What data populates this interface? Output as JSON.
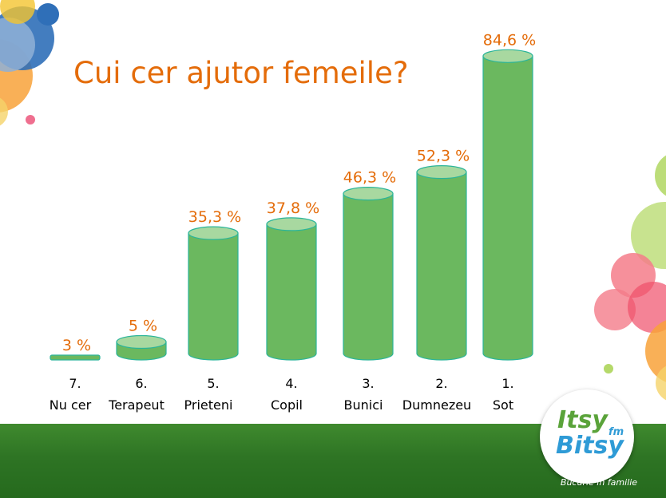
{
  "chart_data": {
    "type": "bar",
    "title": "Cui cer ajutor femeile?",
    "unit": "%",
    "categories": [
      {
        "rank": "7.",
        "label": "Nu cer"
      },
      {
        "rank": "6.",
        "label": "Terapeut"
      },
      {
        "rank": "5.",
        "label": "Prieteni"
      },
      {
        "rank": "4.",
        "label": "Copil"
      },
      {
        "rank": "3.",
        "label": "Bunici"
      },
      {
        "rank": "2.",
        "label": "Dumnezeu"
      },
      {
        "rank": "1.",
        "label": "Sot"
      }
    ],
    "values": [
      3,
      5,
      35.3,
      37.8,
      46.3,
      52.3,
      84.6
    ],
    "data_labels": [
      "3 %",
      "5 %",
      "35,3 %",
      "37,8 %",
      "46,3 %",
      "52,3 %",
      "84,6 %"
    ],
    "ylim": [
      0,
      100
    ],
    "grid": false,
    "legend": "none"
  },
  "branding": {
    "logo_line1": "Itsy",
    "logo_fm": "fm",
    "logo_line2": "Bitsy",
    "tagline": "Bucurie în familie"
  },
  "colors": {
    "title": "#E46C0A",
    "data_label": "#E46C0A",
    "bar_fill": "#6BB85F",
    "bar_stroke": "#2BB59A",
    "bar_top": "#A8D8A0",
    "footer": "#2E7424"
  }
}
